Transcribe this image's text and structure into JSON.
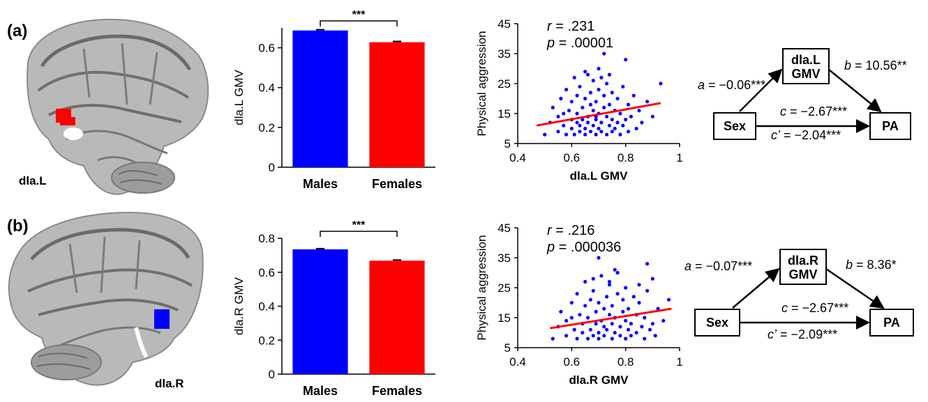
{
  "figure": {
    "rows": [
      {
        "panel_label": "(a)",
        "region_label": "dla.L",
        "highlight_color": "#ff0000",
        "correlation": {
          "r_text": ".231",
          "p_text": ".00001"
        },
        "mediation": {
          "mediator_line1": "dla.L",
          "mediator_line2": "GMV",
          "x_label": "Sex",
          "y_label": "PA",
          "a_value": "= −0.06***",
          "b_value": "= 10.56**",
          "c_value": "= −2.67***",
          "cprime_value": "= −2.04***"
        }
      },
      {
        "panel_label": "(b)",
        "region_label": "dla.R",
        "highlight_color": "#0000ff",
        "correlation": {
          "r_text": ".216",
          "p_text": ".000036"
        },
        "mediation": {
          "mediator_line1": "dla.R",
          "mediator_line2": "GMV",
          "x_label": "Sex",
          "y_label": "PA",
          "a_value": "= −0.07***",
          "b_value": "= 8.36*",
          "c_value": "= −2.67***",
          "cprime_value": "= −2.09***"
        }
      }
    ],
    "symbols": {
      "a": "a",
      "b": "b",
      "c": "c",
      "cprime": "c’",
      "r": "r",
      "p": "p",
      "eq": "="
    }
  },
  "chart_data": [
    {
      "type": "bar",
      "categories": [
        "Males",
        "Females"
      ],
      "values": [
        0.687,
        0.628
      ],
      "errors": [
        0.004,
        0.004
      ],
      "colors": [
        "#0000ff",
        "#ff0000"
      ],
      "ylabel": "dla.L GMV",
      "ylim": [
        0,
        0.7
      ],
      "yticks": [
        "0",
        "0.2",
        "0.4",
        "0.6"
      ],
      "significance": "***"
    },
    {
      "type": "scatter",
      "xlabel": "dla.L GMV",
      "ylabel": "Physical aggression",
      "xlim": [
        0.4,
        1.0
      ],
      "ylim": [
        5,
        45
      ],
      "xticks": [
        "0.4",
        "0.6",
        "0.8",
        "1"
      ],
      "yticks": [
        "5",
        "15",
        "25",
        "35",
        "45"
      ],
      "point_color": "#0000ff",
      "fit_color": "#ff0000",
      "fit_line": [
        [
          0.47,
          11.0
        ],
        [
          0.93,
          18.5
        ]
      ],
      "points": [
        [
          0.5,
          8
        ],
        [
          0.52,
          12
        ],
        [
          0.53,
          17
        ],
        [
          0.55,
          9
        ],
        [
          0.55,
          14
        ],
        [
          0.56,
          20
        ],
        [
          0.57,
          11
        ],
        [
          0.58,
          8
        ],
        [
          0.58,
          23
        ],
        [
          0.59,
          16
        ],
        [
          0.6,
          10
        ],
        [
          0.6,
          13
        ],
        [
          0.6,
          19
        ],
        [
          0.61,
          27
        ],
        [
          0.61,
          8
        ],
        [
          0.62,
          15
        ],
        [
          0.62,
          21
        ],
        [
          0.63,
          11
        ],
        [
          0.63,
          9
        ],
        [
          0.63,
          24
        ],
        [
          0.64,
          13
        ],
        [
          0.64,
          17
        ],
        [
          0.65,
          8
        ],
        [
          0.65,
          10
        ],
        [
          0.65,
          20
        ],
        [
          0.65,
          29
        ],
        [
          0.66,
          14
        ],
        [
          0.66,
          12
        ],
        [
          0.67,
          9
        ],
        [
          0.67,
          18
        ],
        [
          0.67,
          22
        ],
        [
          0.68,
          11
        ],
        [
          0.68,
          16
        ],
        [
          0.68,
          26
        ],
        [
          0.69,
          8
        ],
        [
          0.69,
          13
        ],
        [
          0.69,
          19
        ],
        [
          0.7,
          10
        ],
        [
          0.7,
          15
        ],
        [
          0.7,
          23
        ],
        [
          0.7,
          30
        ],
        [
          0.71,
          12
        ],
        [
          0.71,
          9
        ],
        [
          0.72,
          17
        ],
        [
          0.72,
          21
        ],
        [
          0.72,
          35
        ],
        [
          0.73,
          8
        ],
        [
          0.73,
          14
        ],
        [
          0.73,
          25
        ],
        [
          0.74,
          11
        ],
        [
          0.74,
          18
        ],
        [
          0.75,
          9
        ],
        [
          0.75,
          13
        ],
        [
          0.75,
          22
        ],
        [
          0.76,
          16
        ],
        [
          0.76,
          10
        ],
        [
          0.77,
          20
        ],
        [
          0.77,
          12
        ],
        [
          0.78,
          8
        ],
        [
          0.78,
          15
        ],
        [
          0.79,
          24
        ],
        [
          0.79,
          11
        ],
        [
          0.8,
          33
        ],
        [
          0.8,
          13
        ],
        [
          0.81,
          9
        ],
        [
          0.81,
          18
        ],
        [
          0.82,
          14
        ],
        [
          0.83,
          21
        ],
        [
          0.84,
          10
        ],
        [
          0.85,
          16
        ],
        [
          0.86,
          12
        ],
        [
          0.88,
          19
        ],
        [
          0.9,
          14
        ],
        [
          0.93,
          25
        ],
        [
          0.66,
          28
        ],
        [
          0.62,
          12
        ],
        [
          0.71,
          27
        ],
        [
          0.74,
          28
        ],
        [
          0.57,
          15
        ],
        [
          0.69,
          14
        ]
      ]
    },
    {
      "type": "bar",
      "categories": [
        "Males",
        "Females"
      ],
      "values": [
        0.735,
        0.668
      ],
      "errors": [
        0.004,
        0.004
      ],
      "colors": [
        "#0000ff",
        "#ff0000"
      ],
      "ylabel": "dla.R GMV",
      "ylim": [
        0,
        0.8
      ],
      "yticks": [
        "0",
        "0.2",
        "0.4",
        "0.6",
        "0.8"
      ],
      "significance": "***"
    },
    {
      "type": "scatter",
      "xlabel": "dla.R GMV",
      "ylabel": "Physical aggression",
      "xlim": [
        0.4,
        1.0
      ],
      "ylim": [
        5,
        45
      ],
      "xticks": [
        "0.4",
        "0.6",
        "0.8",
        "1"
      ],
      "yticks": [
        "5",
        "15",
        "25",
        "35",
        "45"
      ],
      "point_color": "#0000ff",
      "fit_color": "#ff0000",
      "fit_line": [
        [
          0.52,
          11.5
        ],
        [
          0.97,
          18.0
        ]
      ],
      "points": [
        [
          0.53,
          8
        ],
        [
          0.55,
          12
        ],
        [
          0.56,
          17
        ],
        [
          0.58,
          9
        ],
        [
          0.58,
          14
        ],
        [
          0.6,
          20
        ],
        [
          0.61,
          11
        ],
        [
          0.62,
          8
        ],
        [
          0.62,
          23
        ],
        [
          0.63,
          16
        ],
        [
          0.64,
          10
        ],
        [
          0.64,
          13
        ],
        [
          0.65,
          19
        ],
        [
          0.65,
          27
        ],
        [
          0.66,
          8
        ],
        [
          0.66,
          15
        ],
        [
          0.67,
          21
        ],
        [
          0.67,
          11
        ],
        [
          0.68,
          9
        ],
        [
          0.68,
          24
        ],
        [
          0.69,
          13
        ],
        [
          0.69,
          17
        ],
        [
          0.7,
          8
        ],
        [
          0.7,
          10
        ],
        [
          0.7,
          20
        ],
        [
          0.71,
          29
        ],
        [
          0.71,
          14
        ],
        [
          0.72,
          12
        ],
        [
          0.72,
          9
        ],
        [
          0.72,
          18
        ],
        [
          0.73,
          22
        ],
        [
          0.73,
          11
        ],
        [
          0.74,
          16
        ],
        [
          0.74,
          26
        ],
        [
          0.75,
          8
        ],
        [
          0.75,
          13
        ],
        [
          0.75,
          19
        ],
        [
          0.76,
          10
        ],
        [
          0.76,
          15
        ],
        [
          0.77,
          23
        ],
        [
          0.77,
          30
        ],
        [
          0.78,
          12
        ],
        [
          0.78,
          9
        ],
        [
          0.79,
          17
        ],
        [
          0.79,
          21
        ],
        [
          0.7,
          35
        ],
        [
          0.8,
          8
        ],
        [
          0.8,
          14
        ],
        [
          0.8,
          25
        ],
        [
          0.81,
          11
        ],
        [
          0.81,
          18
        ],
        [
          0.82,
          9
        ],
        [
          0.82,
          13
        ],
        [
          0.83,
          22
        ],
        [
          0.84,
          16
        ],
        [
          0.84,
          10
        ],
        [
          0.85,
          20
        ],
        [
          0.86,
          12
        ],
        [
          0.87,
          8
        ],
        [
          0.87,
          15
        ],
        [
          0.88,
          24
        ],
        [
          0.88,
          33
        ],
        [
          0.89,
          11
        ],
        [
          0.9,
          13
        ],
        [
          0.91,
          9
        ],
        [
          0.92,
          18
        ],
        [
          0.94,
          14
        ],
        [
          0.96,
          21
        ],
        [
          0.68,
          28
        ],
        [
          0.74,
          27
        ],
        [
          0.6,
          15
        ],
        [
          0.85,
          26
        ],
        [
          0.76,
          31
        ],
        [
          0.9,
          28
        ]
      ]
    }
  ]
}
